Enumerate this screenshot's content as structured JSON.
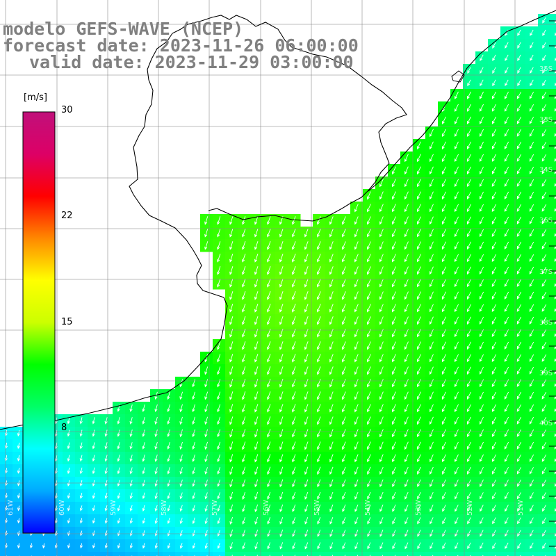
{
  "title": {
    "line1": "modelo GEFS-WAVE (NCEP)",
    "line2": "forecast date: 2023-11-26 06:00:00",
    "line3": "valid date: 2023-11-29 03:00:00"
  },
  "colorbar": {
    "unit": "[m/s]",
    "min": 0,
    "max": 30,
    "ticks": [
      "30",
      "22",
      "15",
      "8"
    ],
    "tick_values": [
      30,
      22,
      15,
      8
    ],
    "colors": [
      "#0000ff",
      "#00aaff",
      "#00ffff",
      "#00ff66",
      "#00ff00",
      "#ccff00",
      "#ffff00",
      "#ff8800",
      "#ff0000",
      "#dd0066",
      "#c0107a"
    ]
  },
  "map": {
    "variable": "wind speed and direction",
    "land_color": "#ffffff",
    "wind_direction": "from north-northeast",
    "lon_labels": [
      "61W",
      "60W",
      "59W",
      "58W",
      "57W",
      "56W",
      "55W",
      "54W",
      "53W",
      "52W",
      "51W"
    ],
    "lat_labels": [
      "35S",
      "33S",
      "34S",
      "36S",
      "37S",
      "38S",
      "39S",
      "40S"
    ]
  }
}
